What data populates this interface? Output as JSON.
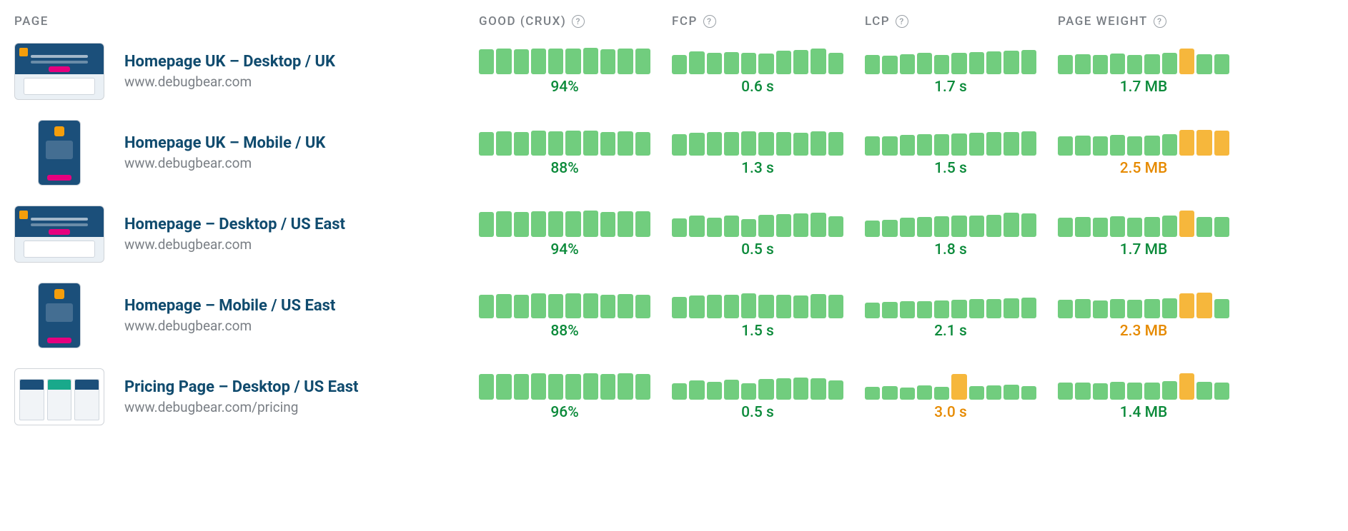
{
  "colors": {
    "good": "#71cd7e",
    "warn": "#f6b73c",
    "background_bar": "#e3e6e9",
    "text_good": "#0b8a3a",
    "text_warn": "#e68a00",
    "header_text": "#7a7f85",
    "title_text": "#104b6e",
    "url_text": "#7a7f85"
  },
  "headers": {
    "page": "PAGE",
    "crux": "GOOD (CRUX)",
    "fcp": "FCP",
    "lcp": "LCP",
    "weight": "PAGE WEIGHT"
  },
  "bar_count": 10,
  "rows": [
    {
      "title": "Homepage UK – Desktop / UK",
      "url": "www.debugbear.com",
      "thumb": "desktop",
      "metrics": {
        "crux": {
          "value": "94%",
          "status": "good",
          "bars": [
            0.92,
            0.95,
            0.93,
            0.96,
            0.94,
            0.95,
            0.97,
            0.93,
            0.96,
            0.94
          ],
          "statuses": [
            "good",
            "good",
            "good",
            "good",
            "good",
            "good",
            "good",
            "good",
            "good",
            "good"
          ]
        },
        "fcp": {
          "value": "0.6 s",
          "status": "good",
          "bars": [
            0.72,
            0.85,
            0.78,
            0.82,
            0.8,
            0.76,
            0.88,
            0.9,
            0.95,
            0.8
          ],
          "statuses": [
            "good",
            "good",
            "good",
            "good",
            "good",
            "good",
            "good",
            "good",
            "good",
            "good"
          ]
        },
        "lcp": {
          "value": "1.7 s",
          "status": "good",
          "bars": [
            0.7,
            0.68,
            0.74,
            0.78,
            0.72,
            0.8,
            0.82,
            0.84,
            0.86,
            0.9
          ],
          "statuses": [
            "good",
            "good",
            "good",
            "good",
            "good",
            "good",
            "good",
            "good",
            "good",
            "good"
          ]
        },
        "weight": {
          "value": "1.7 MB",
          "status": "good",
          "bars": [
            0.72,
            0.74,
            0.7,
            0.76,
            0.72,
            0.74,
            0.78,
            0.96,
            0.75,
            0.74
          ],
          "statuses": [
            "good",
            "good",
            "good",
            "good",
            "good",
            "good",
            "good",
            "warn",
            "good",
            "good"
          ]
        }
      }
    },
    {
      "title": "Homepage UK – Mobile / UK",
      "url": "www.debugbear.com",
      "thumb": "mobile",
      "metrics": {
        "crux": {
          "value": "88%",
          "status": "good",
          "bars": [
            0.86,
            0.9,
            0.88,
            0.92,
            0.89,
            0.91,
            0.93,
            0.87,
            0.9,
            0.88
          ],
          "statuses": [
            "good",
            "good",
            "good",
            "good",
            "good",
            "good",
            "good",
            "good",
            "good",
            "good"
          ]
        },
        "fcp": {
          "value": "1.3 s",
          "status": "good",
          "bars": [
            0.8,
            0.84,
            0.86,
            0.88,
            0.9,
            0.88,
            0.86,
            0.84,
            0.9,
            0.88
          ],
          "statuses": [
            "good",
            "good",
            "good",
            "good",
            "good",
            "good",
            "good",
            "good",
            "good",
            "good"
          ]
        },
        "lcp": {
          "value": "1.5 s",
          "status": "good",
          "bars": [
            0.7,
            0.72,
            0.76,
            0.78,
            0.8,
            0.82,
            0.84,
            0.86,
            0.88,
            0.9
          ],
          "statuses": [
            "good",
            "good",
            "good",
            "good",
            "good",
            "good",
            "good",
            "good",
            "good",
            "good"
          ]
        },
        "weight": {
          "value": "2.5 MB",
          "status": "warn",
          "bars": [
            0.72,
            0.74,
            0.7,
            0.76,
            0.72,
            0.74,
            0.78,
            0.94,
            0.96,
            0.92
          ],
          "statuses": [
            "good",
            "good",
            "good",
            "good",
            "good",
            "good",
            "good",
            "warn",
            "warn",
            "warn"
          ]
        }
      }
    },
    {
      "title": "Homepage – Desktop / US East",
      "url": "www.debugbear.com",
      "thumb": "desktop",
      "metrics": {
        "crux": {
          "value": "94%",
          "status": "good",
          "bars": [
            0.92,
            0.95,
            0.93,
            0.96,
            0.94,
            0.95,
            0.97,
            0.93,
            0.96,
            0.94
          ],
          "statuses": [
            "good",
            "good",
            "good",
            "good",
            "good",
            "good",
            "good",
            "good",
            "good",
            "good"
          ]
        },
        "fcp": {
          "value": "0.5 s",
          "status": "good",
          "bars": [
            0.68,
            0.78,
            0.72,
            0.8,
            0.66,
            0.82,
            0.84,
            0.88,
            0.9,
            0.76
          ],
          "statuses": [
            "good",
            "good",
            "good",
            "good",
            "good",
            "good",
            "good",
            "good",
            "good",
            "good"
          ]
        },
        "lcp": {
          "value": "1.8 s",
          "status": "good",
          "bars": [
            0.6,
            0.62,
            0.72,
            0.74,
            0.76,
            0.78,
            0.8,
            0.82,
            0.9,
            0.86
          ],
          "statuses": [
            "good",
            "good",
            "good",
            "good",
            "good",
            "good",
            "good",
            "good",
            "good",
            "good"
          ]
        },
        "weight": {
          "value": "1.7 MB",
          "status": "good",
          "bars": [
            0.72,
            0.74,
            0.7,
            0.76,
            0.72,
            0.74,
            0.78,
            0.98,
            0.75,
            0.74
          ],
          "statuses": [
            "good",
            "good",
            "good",
            "good",
            "good",
            "good",
            "good",
            "warn",
            "good",
            "good"
          ]
        }
      }
    },
    {
      "title": "Homepage – Mobile / US East",
      "url": "www.debugbear.com",
      "thumb": "mobile",
      "metrics": {
        "crux": {
          "value": "88%",
          "status": "good",
          "bars": [
            0.86,
            0.9,
            0.88,
            0.92,
            0.89,
            0.91,
            0.93,
            0.87,
            0.9,
            0.88
          ],
          "statuses": [
            "good",
            "good",
            "good",
            "good",
            "good",
            "good",
            "good",
            "good",
            "good",
            "good"
          ]
        },
        "fcp": {
          "value": "1.5 s",
          "status": "good",
          "bars": [
            0.8,
            0.84,
            0.86,
            0.88,
            0.92,
            0.88,
            0.86,
            0.84,
            0.9,
            0.88
          ],
          "statuses": [
            "good",
            "good",
            "good",
            "good",
            "good",
            "good",
            "good",
            "good",
            "good",
            "good"
          ]
        },
        "lcp": {
          "value": "2.1 s",
          "status": "good",
          "bars": [
            0.58,
            0.6,
            0.62,
            0.64,
            0.66,
            0.68,
            0.7,
            0.72,
            0.74,
            0.76
          ],
          "statuses": [
            "good",
            "good",
            "good",
            "good",
            "good",
            "good",
            "good",
            "good",
            "good",
            "good"
          ]
        },
        "weight": {
          "value": "2.3 MB",
          "status": "warn",
          "bars": [
            0.68,
            0.7,
            0.66,
            0.72,
            0.68,
            0.7,
            0.74,
            0.92,
            0.94,
            0.72
          ],
          "statuses": [
            "good",
            "good",
            "good",
            "good",
            "good",
            "good",
            "good",
            "warn",
            "warn",
            "good"
          ]
        }
      }
    },
    {
      "title": "Pricing Page – Desktop / US East",
      "url": "www.debugbear.com/pricing",
      "thumb": "pricing",
      "metrics": {
        "crux": {
          "value": "96%",
          "status": "good",
          "bars": [
            0.94,
            0.96,
            0.95,
            0.97,
            0.96,
            0.95,
            0.98,
            0.96,
            0.97,
            0.96
          ],
          "statuses": [
            "good",
            "good",
            "good",
            "good",
            "good",
            "good",
            "good",
            "good",
            "good",
            "good"
          ]
        },
        "fcp": {
          "value": "0.5 s",
          "status": "good",
          "bars": [
            0.6,
            0.72,
            0.66,
            0.74,
            0.6,
            0.76,
            0.78,
            0.82,
            0.8,
            0.7
          ],
          "statuses": [
            "good",
            "good",
            "good",
            "good",
            "good",
            "good",
            "good",
            "good",
            "good",
            "good"
          ]
        },
        "lcp": {
          "value": "3.0 s",
          "status": "warn",
          "bars": [
            0.48,
            0.5,
            0.46,
            0.52,
            0.48,
            0.96,
            0.5,
            0.52,
            0.54,
            0.5
          ],
          "statuses": [
            "good",
            "good",
            "good",
            "good",
            "good",
            "warn",
            "good",
            "good",
            "good",
            "good"
          ]
        },
        "weight": {
          "value": "1.4 MB",
          "status": "good",
          "bars": [
            0.62,
            0.64,
            0.6,
            0.66,
            0.62,
            0.64,
            0.68,
            0.98,
            0.65,
            0.64
          ],
          "statuses": [
            "good",
            "good",
            "good",
            "good",
            "good",
            "good",
            "good",
            "warn",
            "good",
            "good"
          ]
        }
      }
    }
  ]
}
